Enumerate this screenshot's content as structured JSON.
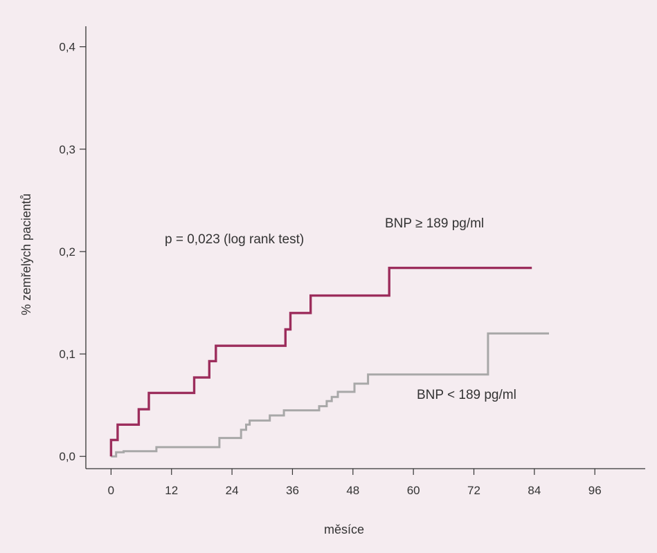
{
  "chart_data": {
    "type": "line",
    "step": true,
    "xlabel": "měsíce",
    "ylabel": "% zemřelých pacientů",
    "xlim": [
      -5,
      106
    ],
    "ylim": [
      -0.012,
      0.42
    ],
    "xticks": [
      0,
      12,
      24,
      36,
      48,
      60,
      72,
      84,
      96
    ],
    "yticks": [
      "0,0",
      "0,1",
      "0,2",
      "0,3",
      "0,4"
    ],
    "ytick_values": [
      0.0,
      0.1,
      0.2,
      0.3,
      0.4
    ],
    "grid": false,
    "annotations": [
      {
        "text": "p = 0,023 (log rank test)"
      },
      {
        "text": "BNP ≥ 189 pg/ml"
      },
      {
        "text": "BNP < 189 pg/ml"
      }
    ],
    "series": [
      {
        "name": "BNP ≥ 189 pg/ml",
        "color": "#9c2d5c",
        "points": [
          [
            0,
            0.0
          ],
          [
            0,
            0.016
          ],
          [
            1.3,
            0.016
          ],
          [
            1.3,
            0.031
          ],
          [
            5.5,
            0.031
          ],
          [
            5.5,
            0.046
          ],
          [
            7.5,
            0.046
          ],
          [
            7.5,
            0.062
          ],
          [
            16.5,
            0.062
          ],
          [
            16.5,
            0.077
          ],
          [
            19.5,
            0.077
          ],
          [
            19.5,
            0.093
          ],
          [
            20.8,
            0.093
          ],
          [
            20.8,
            0.108
          ],
          [
            34.6,
            0.108
          ],
          [
            34.6,
            0.124
          ],
          [
            35.6,
            0.124
          ],
          [
            35.6,
            0.14
          ],
          [
            39.6,
            0.14
          ],
          [
            39.6,
            0.157
          ],
          [
            55.2,
            0.157
          ],
          [
            55.2,
            0.184
          ],
          [
            83.5,
            0.184
          ]
        ]
      },
      {
        "name": "BNP < 189 pg/ml",
        "color": "#a8a8a8",
        "points": [
          [
            0,
            0.0
          ],
          [
            1.0,
            0.0
          ],
          [
            1.0,
            0.004
          ],
          [
            2.5,
            0.004
          ],
          [
            2.5,
            0.005
          ],
          [
            9.0,
            0.005
          ],
          [
            9.0,
            0.009
          ],
          [
            21.5,
            0.009
          ],
          [
            21.5,
            0.018
          ],
          [
            25.8,
            0.018
          ],
          [
            25.8,
            0.026
          ],
          [
            26.8,
            0.026
          ],
          [
            26.8,
            0.031
          ],
          [
            27.5,
            0.031
          ],
          [
            27.5,
            0.035
          ],
          [
            31.5,
            0.035
          ],
          [
            31.5,
            0.04
          ],
          [
            34.3,
            0.04
          ],
          [
            34.3,
            0.045
          ],
          [
            41.3,
            0.045
          ],
          [
            41.3,
            0.049
          ],
          [
            42.8,
            0.049
          ],
          [
            42.8,
            0.054
          ],
          [
            43.8,
            0.054
          ],
          [
            43.8,
            0.058
          ],
          [
            45.0,
            0.058
          ],
          [
            45.0,
            0.063
          ],
          [
            48.3,
            0.063
          ],
          [
            48.3,
            0.071
          ],
          [
            51.0,
            0.071
          ],
          [
            51.0,
            0.08
          ],
          [
            74.8,
            0.08
          ],
          [
            74.8,
            0.12
          ],
          [
            86.9,
            0.12
          ]
        ]
      }
    ]
  }
}
